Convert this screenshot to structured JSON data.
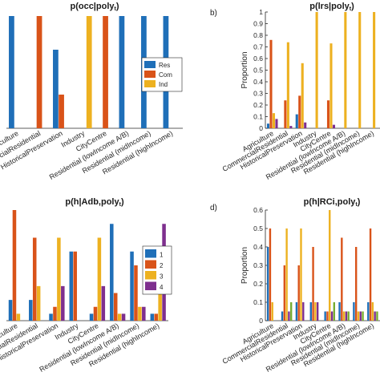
{
  "chart_data": [
    {
      "type": "bar",
      "panel_label": "",
      "title_main": "p(occ|poly",
      "title_sub": "t",
      "title_end": ")",
      "ylabel": "",
      "ylim": [
        0,
        1
      ],
      "yticks": [],
      "categories": [
        "Agriculture",
        "CommercialResidential",
        "HistoricalPreservation",
        "Industry",
        "CityCentre",
        "Residential (lowIncome A/B)",
        "Residential (midIncome)",
        "Residential (highIncome)"
      ],
      "series": [
        {
          "name": "Res",
          "color": "#1f6fb8",
          "values": [
            1.0,
            0,
            0.7,
            0,
            0,
            1.0,
            1.0,
            1.0
          ]
        },
        {
          "name": "Com",
          "color": "#d95319",
          "values": [
            0,
            1.0,
            0.3,
            0,
            1.0,
            0,
            0,
            0
          ]
        },
        {
          "name": "Ind",
          "color": "#edb120",
          "values": [
            0,
            0,
            0,
            1.0,
            0,
            0,
            0,
            0
          ]
        }
      ],
      "legend": "right"
    },
    {
      "type": "bar",
      "panel_label": "b)",
      "title_main": "p(lrs|poly",
      "title_sub": "t",
      "title_end": ")",
      "ylabel": "Proportion",
      "ylim": [
        0,
        1
      ],
      "yticks": [
        "0",
        "0.1",
        "0.2",
        "0.3",
        "0.4",
        "0.5",
        "0.6",
        "0.7",
        "0.8",
        "0.9",
        "1"
      ],
      "categories": [
        "Agriculture",
        "CommercialResidential",
        "HistoricalPreservation",
        "Industry",
        "CityCentre",
        "Residential (lowIncome A/B)",
        "Residential (midIncome)",
        "Residential (highIncome)"
      ],
      "series": [
        {
          "color": "#1f6fb8",
          "values": [
            0.04,
            0,
            0.12,
            0,
            0,
            0,
            0,
            0
          ]
        },
        {
          "color": "#d95319",
          "values": [
            0.76,
            0.24,
            0.28,
            0,
            0.24,
            0,
            0,
            0
          ]
        },
        {
          "color": "#edb120",
          "values": [
            0.13,
            0.74,
            0.56,
            1.0,
            0.73,
            1.0,
            1.0,
            1.0
          ]
        },
        {
          "color": "#7e2f8e",
          "values": [
            0.08,
            0.02,
            0.05,
            0,
            0.03,
            0,
            0,
            0
          ]
        }
      ],
      "legend": "none"
    },
    {
      "type": "bar",
      "panel_label": "",
      "title_main": "p(h|Adb,poly",
      "title_sub": "t",
      "title_end": ")",
      "ylabel": "",
      "ylim": [
        0,
        0.8
      ],
      "yticks": [],
      "categories": [
        "Agriculture",
        "CommercialResidential",
        "HistoricalPreservation",
        "Industry",
        "CityCentre",
        "Residential (lowIncome A/B)",
        "Residential (midIncome)",
        "Residential (highIncome)"
      ],
      "series": [
        {
          "name": "1",
          "color": "#1f6fb8",
          "values": [
            0.15,
            0.15,
            0.05,
            0.5,
            0.05,
            0.7,
            0.5,
            0.05
          ]
        },
        {
          "name": "2",
          "color": "#d95319",
          "values": [
            0.8,
            0.6,
            0.1,
            0.5,
            0.1,
            0.2,
            0.4,
            0.05
          ]
        },
        {
          "name": "3",
          "color": "#edb120",
          "values": [
            0.05,
            0.25,
            0.6,
            0,
            0.6,
            0.05,
            0.1,
            0.2
          ]
        },
        {
          "name": "4",
          "color": "#7e2f8e",
          "values": [
            0,
            0,
            0.25,
            0,
            0.25,
            0.05,
            0.1,
            0.7
          ]
        }
      ],
      "legend": "right"
    },
    {
      "type": "bar",
      "panel_label": "d)",
      "title_main": "p(h|RCi,poly",
      "title_sub": "t",
      "title_end": ")",
      "ylabel": "Proportion",
      "ylim": [
        0,
        0.6
      ],
      "yticks": [
        "0",
        "0.1",
        "0.2",
        "0.3",
        "0.4",
        "0.5",
        "0.6"
      ],
      "categories": [
        "Agriculture",
        "CommercialResidential",
        "HistoricalPreservation",
        "Industry",
        "CityCentre",
        "Residential (lowIncome A/B)",
        "Residential (midIncome)",
        "Residential (highIncome)"
      ],
      "series": [
        {
          "color": "#1f6fb8",
          "values": [
            0.4,
            0.05,
            0.1,
            0.1,
            0.05,
            0.1,
            0.1,
            0.1
          ]
        },
        {
          "color": "#d95319",
          "values": [
            0.5,
            0.3,
            0.3,
            0.4,
            0.05,
            0.45,
            0.4,
            0.5
          ]
        },
        {
          "color": "#edb120",
          "values": [
            0.1,
            0.5,
            0.5,
            0.1,
            0.6,
            0.05,
            0.05,
            0.1
          ]
        },
        {
          "color": "#7e2f8e",
          "values": [
            0,
            0.05,
            0.1,
            0.1,
            0.05,
            0.05,
            0.05,
            0.05
          ]
        },
        {
          "color": "#77ac30",
          "values": [
            0,
            0.1,
            0,
            0,
            0.1,
            0.05,
            0.05,
            0.05
          ]
        }
      ],
      "legend": "none"
    }
  ]
}
